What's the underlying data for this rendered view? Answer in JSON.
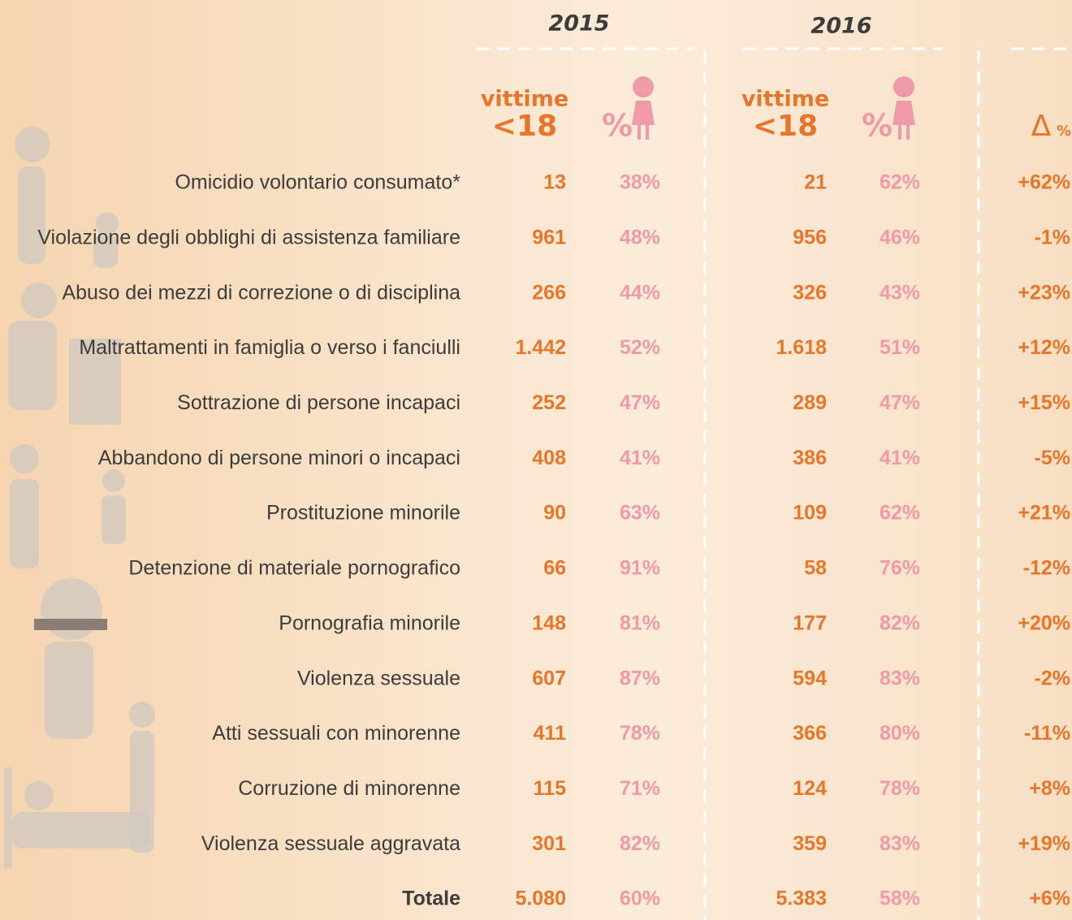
{
  "header": {
    "years": [
      "2015",
      "2016"
    ],
    "victims_label": "vittime",
    "victims_age": "<18",
    "female_pct": "%",
    "delta_symbol": "Δ",
    "delta_unit": "%"
  },
  "table": {
    "rows": [
      [
        "Omicidio volontario consumato*",
        "13",
        "38%",
        "21",
        "62%",
        "+62%"
      ],
      [
        "Violazione degli obblighi di assistenza familiare",
        "961",
        "48%",
        "956",
        "46%",
        "-1%"
      ],
      [
        "Abuso dei mezzi di correzione o di disciplina",
        "266",
        "44%",
        "326",
        "43%",
        "+23%"
      ],
      [
        "Maltrattamenti in famiglia o verso i fanciulli",
        "1.442",
        "52%",
        "1.618",
        "51%",
        "+12%"
      ],
      [
        "Sottrazione di persone incapaci",
        "252",
        "47%",
        "289",
        "47%",
        "+15%"
      ],
      [
        "Abbandono di persone minori o incapaci",
        "408",
        "41%",
        "386",
        "41%",
        "-5%"
      ],
      [
        "Prostituzione minorile",
        "90",
        "63%",
        "109",
        "62%",
        "+21%"
      ],
      [
        "Detenzione di materiale pornografico",
        "66",
        "91%",
        "58",
        "76%",
        "-12%"
      ],
      [
        "Pornografia minorile",
        "148",
        "81%",
        "177",
        "82%",
        "+20%"
      ],
      [
        "Violenza sessuale",
        "607",
        "87%",
        "594",
        "83%",
        "-2%"
      ],
      [
        "Atti sessuali con minorenne",
        "411",
        "78%",
        "366",
        "80%",
        "-11%"
      ],
      [
        "Corruzione di minorenne",
        "115",
        "71%",
        "124",
        "78%",
        "+8%"
      ],
      [
        "Violenza sessuale aggravata",
        "301",
        "82%",
        "359",
        "83%",
        "+19%"
      ]
    ],
    "total": [
      "Totale",
      "5.080",
      "60%",
      "5.383",
      "58%",
      "+6%"
    ]
  }
}
